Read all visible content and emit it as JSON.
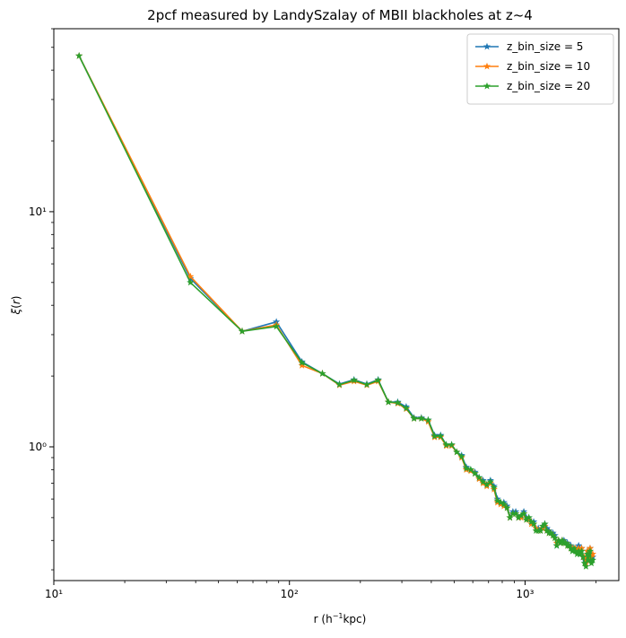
{
  "chart_data": {
    "type": "line",
    "title": "2pcf measured by LandySzalay of MBII blackholes at z~4",
    "xlabel": "r ($h^{-1}$kpc)",
    "ylabel": "$\\xi(r)$",
    "xscale": "log",
    "yscale": "log",
    "xlim": [
      10,
      2500
    ],
    "ylim": [
      0.27,
      60
    ],
    "xticks": [
      {
        "value": 10,
        "label": "10¹"
      },
      {
        "value": 100,
        "label": "10²"
      },
      {
        "value": 1000,
        "label": "10³"
      }
    ],
    "yticks": [
      {
        "value": 1,
        "label": "10⁰"
      },
      {
        "value": 10,
        "label": "10¹"
      }
    ],
    "grid": false,
    "legend_position": "top-right",
    "marker": "star",
    "series": [
      {
        "name": "z_bin_size = 5",
        "color": "#1f77b4",
        "x": [
          12.8,
          38,
          63,
          88,
          113,
          138,
          163,
          188,
          213,
          238,
          263,
          288,
          313,
          338,
          363,
          388,
          413,
          438,
          463,
          488,
          513,
          538,
          563,
          588,
          613,
          638,
          663,
          688,
          713,
          738,
          763,
          788,
          813,
          838,
          863,
          888,
          913,
          938,
          963,
          988,
          1013,
          1038,
          1063,
          1088,
          1113,
          1138,
          1163,
          1188,
          1213,
          1238,
          1263,
          1288,
          1313,
          1338,
          1363,
          1388,
          1413,
          1438,
          1463,
          1488,
          1513,
          1538,
          1563,
          1588,
          1613,
          1638,
          1663,
          1688,
          1713,
          1738,
          1763,
          1788,
          1813,
          1838,
          1863,
          1888,
          1913,
          1938
        ],
        "y": [
          46,
          5.2,
          3.1,
          3.4,
          2.3,
          2.05,
          1.85,
          1.93,
          1.85,
          1.93,
          1.55,
          1.55,
          1.48,
          1.33,
          1.33,
          1.3,
          1.12,
          1.12,
          1.02,
          1.02,
          0.95,
          0.92,
          0.82,
          0.8,
          0.78,
          0.74,
          0.72,
          0.69,
          0.72,
          0.68,
          0.6,
          0.58,
          0.58,
          0.56,
          0.5,
          0.53,
          0.53,
          0.5,
          0.51,
          0.53,
          0.5,
          0.5,
          0.48,
          0.48,
          0.45,
          0.45,
          0.44,
          0.46,
          0.47,
          0.45,
          0.44,
          0.43,
          0.43,
          0.42,
          0.38,
          0.4,
          0.39,
          0.4,
          0.4,
          0.39,
          0.39,
          0.38,
          0.38,
          0.37,
          0.37,
          0.37,
          0.36,
          0.38,
          0.35,
          0.37,
          0.34,
          0.33,
          0.32,
          0.36,
          0.33,
          0.37,
          0.33,
          0.34
        ]
      },
      {
        "name": "z_bin_size = 10",
        "color": "#ff7f0e",
        "x": [
          12.8,
          38,
          63,
          88,
          113,
          138,
          163,
          188,
          213,
          238,
          263,
          288,
          313,
          338,
          363,
          388,
          413,
          438,
          463,
          488,
          513,
          538,
          563,
          588,
          613,
          638,
          663,
          688,
          713,
          738,
          763,
          788,
          813,
          838,
          863,
          888,
          913,
          938,
          963,
          988,
          1013,
          1038,
          1063,
          1088,
          1113,
          1138,
          1163,
          1188,
          1213,
          1238,
          1263,
          1288,
          1313,
          1338,
          1363,
          1388,
          1413,
          1438,
          1463,
          1488,
          1513,
          1538,
          1563,
          1588,
          1613,
          1638,
          1663,
          1688,
          1713,
          1738,
          1763,
          1788,
          1813,
          1838,
          1863,
          1888,
          1913,
          1938
        ],
        "y": [
          46,
          5.3,
          3.1,
          3.3,
          2.22,
          2.05,
          1.83,
          1.9,
          1.83,
          1.9,
          1.55,
          1.53,
          1.45,
          1.32,
          1.32,
          1.28,
          1.1,
          1.1,
          1.01,
          1.01,
          0.95,
          0.9,
          0.8,
          0.79,
          0.77,
          0.73,
          0.7,
          0.68,
          0.7,
          0.66,
          0.58,
          0.57,
          0.56,
          0.55,
          0.5,
          0.52,
          0.52,
          0.5,
          0.5,
          0.52,
          0.49,
          0.49,
          0.47,
          0.47,
          0.45,
          0.44,
          0.44,
          0.45,
          0.46,
          0.44,
          0.43,
          0.43,
          0.42,
          0.41,
          0.39,
          0.4,
          0.39,
          0.4,
          0.39,
          0.39,
          0.38,
          0.38,
          0.37,
          0.37,
          0.37,
          0.37,
          0.36,
          0.37,
          0.36,
          0.37,
          0.34,
          0.34,
          0.32,
          0.36,
          0.34,
          0.37,
          0.34,
          0.35
        ]
      },
      {
        "name": "z_bin_size = 20",
        "color": "#2ca02c",
        "x": [
          12.8,
          38,
          63,
          88,
          113,
          138,
          163,
          188,
          213,
          238,
          263,
          288,
          313,
          338,
          363,
          388,
          413,
          438,
          463,
          488,
          513,
          538,
          563,
          588,
          613,
          638,
          663,
          688,
          713,
          738,
          763,
          788,
          813,
          838,
          863,
          888,
          913,
          938,
          963,
          988,
          1013,
          1038,
          1063,
          1088,
          1113,
          1138,
          1163,
          1188,
          1213,
          1238,
          1263,
          1288,
          1313,
          1338,
          1363,
          1388,
          1413,
          1438,
          1463,
          1488,
          1513,
          1538,
          1563,
          1588,
          1613,
          1638,
          1663,
          1688,
          1713,
          1738,
          1763,
          1788,
          1813,
          1838,
          1863,
          1888,
          1913,
          1938
        ],
        "y": [
          46,
          5.0,
          3.1,
          3.25,
          2.28,
          2.05,
          1.84,
          1.92,
          1.84,
          1.92,
          1.55,
          1.54,
          1.46,
          1.32,
          1.32,
          1.3,
          1.11,
          1.11,
          1.02,
          1.02,
          0.95,
          0.91,
          0.81,
          0.8,
          0.77,
          0.74,
          0.71,
          0.69,
          0.71,
          0.67,
          0.59,
          0.58,
          0.57,
          0.55,
          0.5,
          0.52,
          0.52,
          0.5,
          0.51,
          0.52,
          0.49,
          0.5,
          0.48,
          0.47,
          0.44,
          0.44,
          0.44,
          0.46,
          0.47,
          0.44,
          0.43,
          0.43,
          0.42,
          0.41,
          0.38,
          0.4,
          0.39,
          0.4,
          0.39,
          0.39,
          0.38,
          0.38,
          0.37,
          0.36,
          0.37,
          0.36,
          0.35,
          0.36,
          0.35,
          0.36,
          0.34,
          0.32,
          0.31,
          0.35,
          0.33,
          0.36,
          0.32,
          0.33
        ]
      }
    ]
  }
}
